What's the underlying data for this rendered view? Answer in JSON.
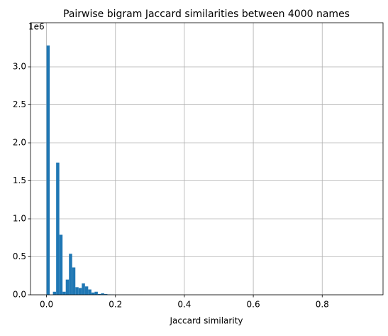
{
  "chart_data": {
    "type": "histogram",
    "title": "Pairwise bigram Jaccard similarities between 4000 names",
    "x_label": "Jaccard similarity",
    "y_offset_label": "1e6",
    "color": "#1f77b4",
    "grid": true,
    "bins": [
      0,
      0.0093,
      0.0186,
      0.0279,
      0.0372,
      0.0465,
      0.0558,
      0.0651,
      0.0744,
      0.0837,
      0.093,
      0.1023,
      0.1116,
      0.1209,
      0.1302,
      0.1395,
      0.1488,
      0.1581,
      0.1674,
      0.1767,
      0.186,
      0.1953,
      0.2046,
      0.2139,
      0.2232,
      0.2325,
      0.2418,
      0.2511,
      0.2604,
      0.2697,
      0.279,
      0.2883,
      0.2976,
      0.3069,
      0.3162,
      0.3255,
      0.3348,
      0.3441,
      0.3534,
      0.3627,
      0.372,
      0.3813,
      0.3906,
      0.3999,
      0.4092,
      0.4185,
      0.4278,
      0.4371,
      0.4464,
      0.4557,
      0.465,
      0.4743,
      0.4836,
      0.4929,
      0.5022,
      0.5115,
      0.5208,
      0.5301,
      0.5394,
      0.5487,
      0.558,
      0.5673,
      0.5766,
      0.5859,
      0.5952,
      0.6045,
      0.6138,
      0.6231,
      0.6324,
      0.6417,
      0.651,
      0.6603,
      0.6696,
      0.6789,
      0.6882,
      0.6975,
      0.7068,
      0.7161,
      0.7254,
      0.7347,
      0.744,
      0.7533,
      0.7626,
      0.7719,
      0.7812,
      0.7905,
      0.7998,
      0.8091,
      0.8184,
      0.8277,
      0.837,
      0.8463,
      0.8556,
      0.8649,
      0.8742,
      0.8835,
      0.8928,
      0.9021,
      0.9114,
      0.9207,
      0.93
    ],
    "values": [
      3.28,
      0,
      0.04,
      1.74,
      0.79,
      0.04,
      0.2,
      0.54,
      0.36,
      0.1,
      0.09,
      0.15,
      0.11,
      0.07,
      0.03,
      0.04,
      0.01,
      0.02,
      0.01,
      0.005,
      0.004,
      0.001,
      0.001,
      0.001,
      0.001,
      0.001,
      0.001,
      0.001,
      0.001,
      0.001,
      0,
      0,
      0,
      0,
      0,
      0,
      0,
      0,
      0,
      0,
      0,
      0,
      0,
      0,
      0,
      0,
      0,
      0,
      0,
      0,
      0,
      0,
      0,
      0,
      0,
      0,
      0,
      0,
      0,
      0,
      0,
      0,
      0,
      0,
      0,
      0,
      0,
      0,
      0,
      0,
      0,
      0,
      0,
      0,
      0,
      0,
      0,
      0,
      0,
      0,
      0,
      0,
      0,
      0,
      0,
      0,
      0,
      0,
      0,
      0,
      0,
      0,
      0,
      0,
      0,
      0,
      0,
      0,
      0,
      0
    ],
    "xlim": [
      -0.0465,
      0.9765
    ],
    "xticks": [
      {
        "value": 0,
        "label": "0.0"
      },
      0.2,
      0.4,
      0.6,
      0.8
    ],
    "ylim": [
      0,
      3.58
    ],
    "yticks": [
      {
        "value": 0,
        "label": "0.0"
      },
      0.5,
      {
        "value": 1,
        "label": "1.0"
      },
      1.5,
      {
        "value": 2,
        "label": "2.0"
      },
      2.5,
      {
        "value": 3,
        "label": "3.0"
      }
    ]
  }
}
